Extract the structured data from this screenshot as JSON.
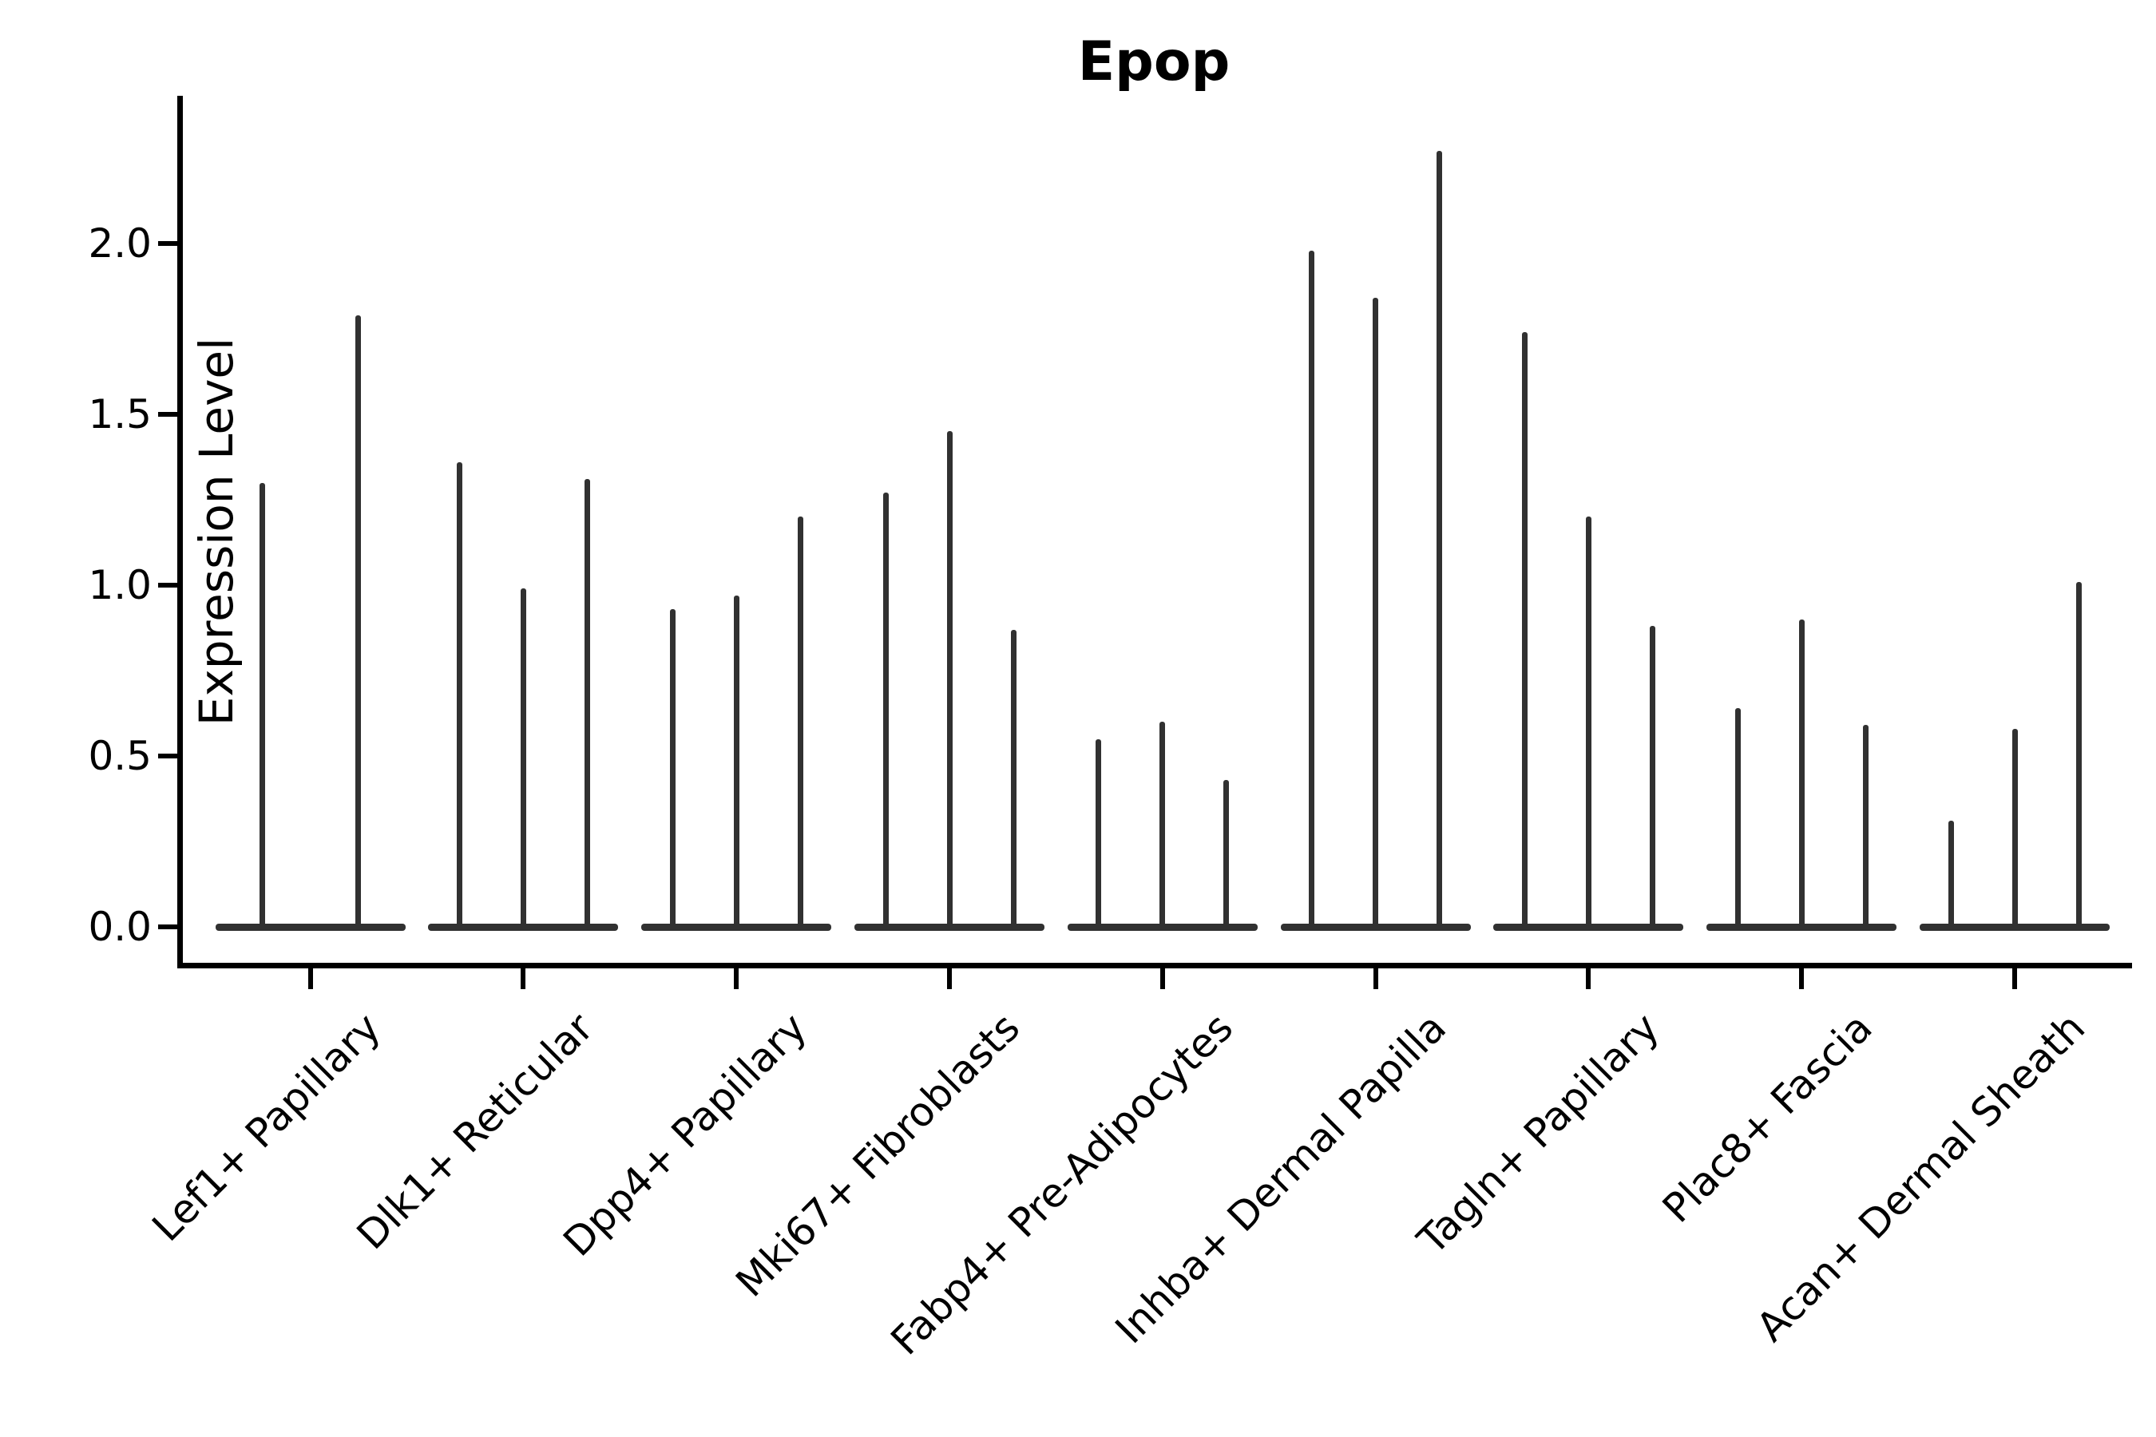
{
  "title": "Epop",
  "ylabel": "Expression Level",
  "chart_data": {
    "type": "violin",
    "title": "Epop",
    "xlabel": "",
    "ylabel": "Expression Level",
    "ylim": [
      -0.12,
      2.43
    ],
    "yticks": [
      0.0,
      0.5,
      1.0,
      1.5,
      2.0
    ],
    "ytick_labels": [
      "0.0",
      "0.5",
      "1.0",
      "1.5",
      "2.0"
    ],
    "grid": false,
    "legend": "none",
    "categories": [
      "Lef1+ Papillary",
      "Dlk1+ Reticular",
      "Dpp4+ Papillary",
      "Mki67+ Fibroblasts",
      "Fabp4+ Pre-Adipocytes",
      "Inhba+ Dermal Papilla",
      "Tagln+ Papillary",
      "Plac8+ Fascia",
      "Acan+ Dermal Sheath"
    ],
    "groups": [
      {
        "label": "Lef1+ Papillary",
        "violin_max_values": [
          1.3,
          1.79
        ]
      },
      {
        "label": "Dlk1+ Reticular",
        "violin_max_values": [
          1.36,
          0.99,
          1.31
        ]
      },
      {
        "label": "Dpp4+ Papillary",
        "violin_max_values": [
          0.93,
          0.97,
          1.2
        ]
      },
      {
        "label": "Mki67+ Fibroblasts",
        "violin_max_values": [
          1.27,
          1.45,
          0.87
        ]
      },
      {
        "label": "Fabp4+ Pre-Adipocytes",
        "violin_max_values": [
          0.55,
          0.6,
          0.43
        ]
      },
      {
        "label": "Inhba+ Dermal Papilla",
        "violin_max_values": [
          1.98,
          1.84,
          2.27
        ]
      },
      {
        "label": "Tagln+ Papillary",
        "violin_max_values": [
          1.74,
          1.2,
          0.88
        ]
      },
      {
        "label": "Plac8+ Fascia",
        "violin_max_values": [
          0.64,
          0.9,
          0.59
        ]
      },
      {
        "label": "Acan+ Dermal Sheath",
        "violin_max_values": [
          0.31,
          0.58,
          1.01
        ]
      }
    ],
    "violin_baseline_value": 0.0,
    "colors": {
      "violin": "#313131",
      "spine": "#000000",
      "text": "#000000",
      "background": "#ffffff"
    }
  }
}
